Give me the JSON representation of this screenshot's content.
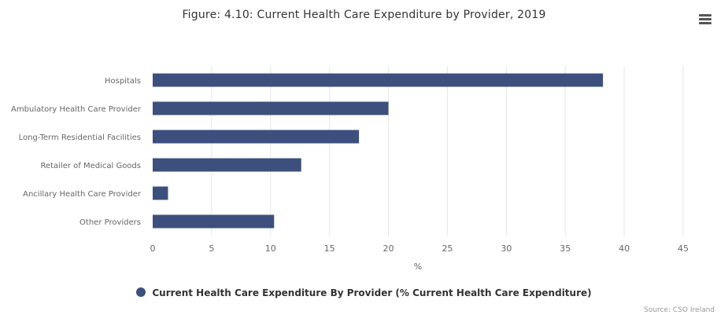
{
  "chart_data": {
    "type": "bar",
    "orientation": "horizontal",
    "title": "Figure: 4.10: Current Health Care Expenditure by Provider, 2019",
    "categories": [
      "Hospitals",
      "Ambulatory Health Care Provider",
      "Long-Term Residential Facilities",
      "Retailer of Medical Goods",
      "Ancillary Health Care Provider",
      "Other Providers"
    ],
    "series": [
      {
        "name": "Current Health Care Expenditure By Provider (% Current Health Care Expenditure)",
        "values": [
          38.2,
          20.0,
          17.5,
          12.6,
          1.3,
          10.3
        ],
        "color": "#3d4f7c"
      }
    ],
    "xlabel": "%",
    "ylabel": "",
    "xlim": [
      0,
      45
    ],
    "ticks": [
      0,
      5,
      10,
      15,
      20,
      25,
      30,
      35,
      40,
      45
    ],
    "grid": true,
    "legend_position": "bottom"
  },
  "source": "Source: CSO Ireland",
  "menu_icon": "hamburger-menu-icon"
}
